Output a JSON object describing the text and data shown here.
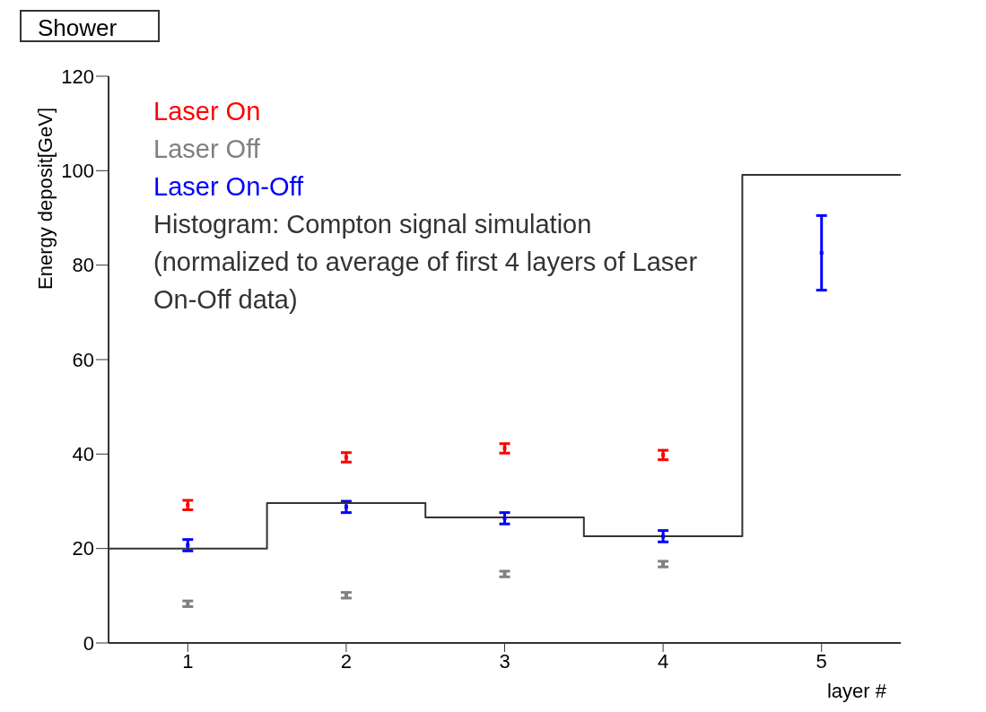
{
  "chart_data": {
    "type": "scatter",
    "title": "Shower",
    "xlabel": "layer #",
    "ylabel": "Energy deposit[GeV]",
    "xlim": [
      0.5,
      5.5
    ],
    "xticks": [
      1,
      2,
      3,
      4,
      5
    ],
    "ylim": [
      0,
      120
    ],
    "yticks": [
      0,
      20,
      40,
      60,
      80,
      100,
      120
    ],
    "legend": "top left",
    "marker": "square",
    "grid": false,
    "series": [
      {
        "name": "Laser On",
        "color": "#ff0000",
        "x": [
          1,
          2,
          3,
          4
        ],
        "values": [
          29.2,
          39.3,
          41.2,
          39.8
        ],
        "errors": [
          1,
          1,
          1,
          1
        ]
      },
      {
        "name": "Laser Off",
        "color": "#808080",
        "x": [
          1,
          2,
          3,
          4
        ],
        "values": [
          8.3,
          10.1,
          14.6,
          16.7
        ],
        "errors": [
          0.6,
          0.6,
          0.6,
          0.6
        ]
      },
      {
        "name": "Laser On-Off",
        "color": "#0000ff",
        "x": [
          1,
          2,
          3,
          4,
          5
        ],
        "values": [
          20.7,
          28.8,
          26.4,
          22.6,
          82.6
        ],
        "errors": [
          1.2,
          1.2,
          1.2,
          1.2,
          7.9
        ]
      },
      {
        "name": "Histogram: Compton signal simulation (normalized to average of first 4 layers of Laser On-Off data)",
        "type": "histogram",
        "color": "#333333",
        "bins": [
          0.5,
          1.5,
          2.5,
          3.5,
          4.5,
          5.5
        ],
        "values": [
          20,
          29.6,
          26.6,
          22.6,
          99.1
        ]
      }
    ]
  }
}
